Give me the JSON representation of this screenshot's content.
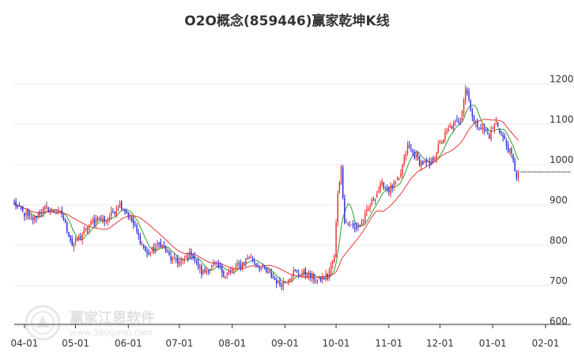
{
  "chart_data": {
    "type": "candlestick",
    "title": "O2O概念(859446)赢家乾坤K线",
    "y_ticks": [
      1200,
      1100,
      1000,
      900,
      800,
      700,
      600
    ],
    "ylim": [
      600,
      1230
    ],
    "x_ticks": [
      "04-01",
      "05-01",
      "06-01",
      "07-01",
      "08-01",
      "09-01",
      "10-01",
      "11-01",
      "12-01",
      "01-01",
      "02-01"
    ],
    "x_ticks_dayindex": [
      0,
      30,
      61,
      91,
      122,
      153,
      183,
      214,
      244,
      275,
      306
    ],
    "x_range_days": [
      -6,
      306
    ],
    "last_close": 970,
    "grid": "horizontal",
    "candle_colors": {
      "up": "#e8312a",
      "down": "#2b2bd6",
      "neutral": "#8b2d9c"
    },
    "ma_series": [
      {
        "color": "#2e9c2e",
        "role": "short"
      },
      {
        "color": "#e53935",
        "role": "long"
      }
    ],
    "close_path": [
      [
        -6,
        890
      ],
      [
        4,
        850
      ],
      [
        12,
        880
      ],
      [
        22,
        865
      ],
      [
        28,
        790
      ],
      [
        34,
        815
      ],
      [
        42,
        855
      ],
      [
        48,
        850
      ],
      [
        56,
        890
      ],
      [
        62,
        858
      ],
      [
        68,
        800
      ],
      [
        72,
        765
      ],
      [
        80,
        793
      ],
      [
        86,
        755
      ],
      [
        92,
        745
      ],
      [
        98,
        770
      ],
      [
        104,
        720
      ],
      [
        112,
        740
      ],
      [
        118,
        715
      ],
      [
        125,
        735
      ],
      [
        132,
        760
      ],
      [
        138,
        735
      ],
      [
        144,
        715
      ],
      [
        150,
        690
      ],
      [
        158,
        720
      ],
      [
        166,
        718
      ],
      [
        172,
        700
      ],
      [
        178,
        712
      ],
      [
        182,
        760
      ],
      [
        184,
        920
      ],
      [
        186,
        980
      ],
      [
        188,
        850
      ],
      [
        194,
        828
      ],
      [
        198,
        845
      ],
      [
        204,
        895
      ],
      [
        210,
        940
      ],
      [
        214,
        925
      ],
      [
        220,
        950
      ],
      [
        225,
        1035
      ],
      [
        232,
        995
      ],
      [
        238,
        985
      ],
      [
        244,
        1040
      ],
      [
        250,
        1080
      ],
      [
        256,
        1100
      ],
      [
        259,
        1180
      ],
      [
        261,
        1150
      ],
      [
        264,
        1090
      ],
      [
        268,
        1080
      ],
      [
        273,
        1060
      ],
      [
        277,
        1095
      ],
      [
        281,
        1055
      ],
      [
        286,
        1010
      ],
      [
        289,
        960
      ],
      [
        290,
        970
      ]
    ]
  },
  "watermark": {
    "name": "赢家江恩软件",
    "url": "www.360gann.com"
  }
}
